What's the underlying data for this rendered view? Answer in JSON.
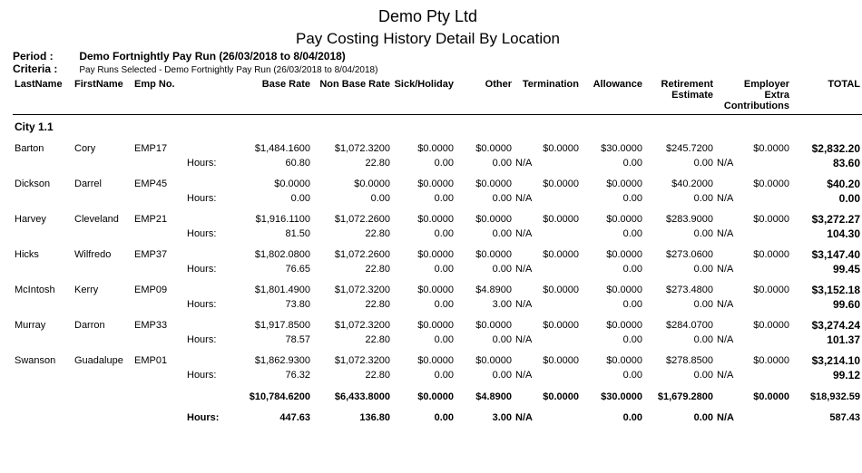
{
  "company_name": "Demo Pty Ltd",
  "report_title": "Pay Costing History Detail By Location",
  "period_label": "Period :",
  "period_value": "Demo Fortnightly Pay Run (26/03/2018 to 8/04/2018)",
  "criteria_label": "Criteria :",
  "criteria_value": "Pay Runs Selected - Demo Fortnightly Pay Run (26/03/2018 to 8/04/2018)",
  "hours_row_label": "Hours:",
  "columns": {
    "last_name": "LastName",
    "first_name": "FirstName",
    "emp_no": "Emp No.",
    "base_rate": "Base Rate",
    "non_base_rate": "Non Base Rate",
    "sick_holiday": "Sick/Holiday",
    "other": "Other",
    "termination": "Termination",
    "allowance": "Allowance",
    "retirement_estimate": "Retirement Estimate",
    "employer_extra": "Employer Extra Contributions",
    "total": "TOTAL"
  },
  "group_name": "City 1.1",
  "employees": [
    {
      "last": "Barton",
      "first": "Cory",
      "emp": "EMP17",
      "amt": {
        "base": "$1,484.1600",
        "nonbase": "$1,072.3200",
        "sick": "$0.0000",
        "other": "$0.0000",
        "term": "$0.0000",
        "allow": "$30.0000",
        "ret": "$245.7200",
        "extra": "$0.0000",
        "total": "$2,832.20"
      },
      "hrs": {
        "base": "60.80",
        "nonbase": "22.80",
        "sick": "0.00",
        "other": "0.00",
        "term": "N/A",
        "allow": "0.00",
        "ret": "0.00",
        "extra": "N/A",
        "total": "83.60"
      }
    },
    {
      "last": "Dickson",
      "first": "Darrel",
      "emp": "EMP45",
      "amt": {
        "base": "$0.0000",
        "nonbase": "$0.0000",
        "sick": "$0.0000",
        "other": "$0.0000",
        "term": "$0.0000",
        "allow": "$0.0000",
        "ret": "$40.2000",
        "extra": "$0.0000",
        "total": "$40.20"
      },
      "hrs": {
        "base": "0.00",
        "nonbase": "0.00",
        "sick": "0.00",
        "other": "0.00",
        "term": "N/A",
        "allow": "0.00",
        "ret": "0.00",
        "extra": "N/A",
        "total": "0.00"
      }
    },
    {
      "last": "Harvey",
      "first": "Cleveland",
      "emp": "EMP21",
      "amt": {
        "base": "$1,916.1100",
        "nonbase": "$1,072.2600",
        "sick": "$0.0000",
        "other": "$0.0000",
        "term": "$0.0000",
        "allow": "$0.0000",
        "ret": "$283.9000",
        "extra": "$0.0000",
        "total": "$3,272.27"
      },
      "hrs": {
        "base": "81.50",
        "nonbase": "22.80",
        "sick": "0.00",
        "other": "0.00",
        "term": "N/A",
        "allow": "0.00",
        "ret": "0.00",
        "extra": "N/A",
        "total": "104.30"
      }
    },
    {
      "last": "Hicks",
      "first": "Wilfredo",
      "emp": "EMP37",
      "amt": {
        "base": "$1,802.0800",
        "nonbase": "$1,072.2600",
        "sick": "$0.0000",
        "other": "$0.0000",
        "term": "$0.0000",
        "allow": "$0.0000",
        "ret": "$273.0600",
        "extra": "$0.0000",
        "total": "$3,147.40"
      },
      "hrs": {
        "base": "76.65",
        "nonbase": "22.80",
        "sick": "0.00",
        "other": "0.00",
        "term": "N/A",
        "allow": "0.00",
        "ret": "0.00",
        "extra": "N/A",
        "total": "99.45"
      }
    },
    {
      "last": "McIntosh",
      "first": "Kerry",
      "emp": "EMP09",
      "amt": {
        "base": "$1,801.4900",
        "nonbase": "$1,072.3200",
        "sick": "$0.0000",
        "other": "$4.8900",
        "term": "$0.0000",
        "allow": "$0.0000",
        "ret": "$273.4800",
        "extra": "$0.0000",
        "total": "$3,152.18"
      },
      "hrs": {
        "base": "73.80",
        "nonbase": "22.80",
        "sick": "0.00",
        "other": "3.00",
        "term": "N/A",
        "allow": "0.00",
        "ret": "0.00",
        "extra": "N/A",
        "total": "99.60"
      }
    },
    {
      "last": "Murray",
      "first": "Darron",
      "emp": "EMP33",
      "amt": {
        "base": "$1,917.8500",
        "nonbase": "$1,072.3200",
        "sick": "$0.0000",
        "other": "$0.0000",
        "term": "$0.0000",
        "allow": "$0.0000",
        "ret": "$284.0700",
        "extra": "$0.0000",
        "total": "$3,274.24"
      },
      "hrs": {
        "base": "78.57",
        "nonbase": "22.80",
        "sick": "0.00",
        "other": "0.00",
        "term": "N/A",
        "allow": "0.00",
        "ret": "0.00",
        "extra": "N/A",
        "total": "101.37"
      }
    },
    {
      "last": "Swanson",
      "first": "Guadalupe",
      "emp": "EMP01",
      "amt": {
        "base": "$1,862.9300",
        "nonbase": "$1,072.3200",
        "sick": "$0.0000",
        "other": "$0.0000",
        "term": "$0.0000",
        "allow": "$0.0000",
        "ret": "$278.8500",
        "extra": "$0.0000",
        "total": "$3,214.10"
      },
      "hrs": {
        "base": "76.32",
        "nonbase": "22.80",
        "sick": "0.00",
        "other": "0.00",
        "term": "N/A",
        "allow": "0.00",
        "ret": "0.00",
        "extra": "N/A",
        "total": "99.12"
      }
    }
  ],
  "totals": {
    "amt": {
      "base": "$10,784.6200",
      "nonbase": "$6,433.8000",
      "sick": "$0.0000",
      "other": "$4.8900",
      "term": "$0.0000",
      "allow": "$30.0000",
      "ret": "$1,679.2800",
      "extra": "$0.0000",
      "total": "$18,932.59"
    },
    "hrs": {
      "base": "447.63",
      "nonbase": "136.80",
      "sick": "0.00",
      "other": "3.00",
      "term": "N/A",
      "allow": "0.00",
      "ret": "0.00",
      "extra": "N/A",
      "total": "587.43"
    }
  }
}
